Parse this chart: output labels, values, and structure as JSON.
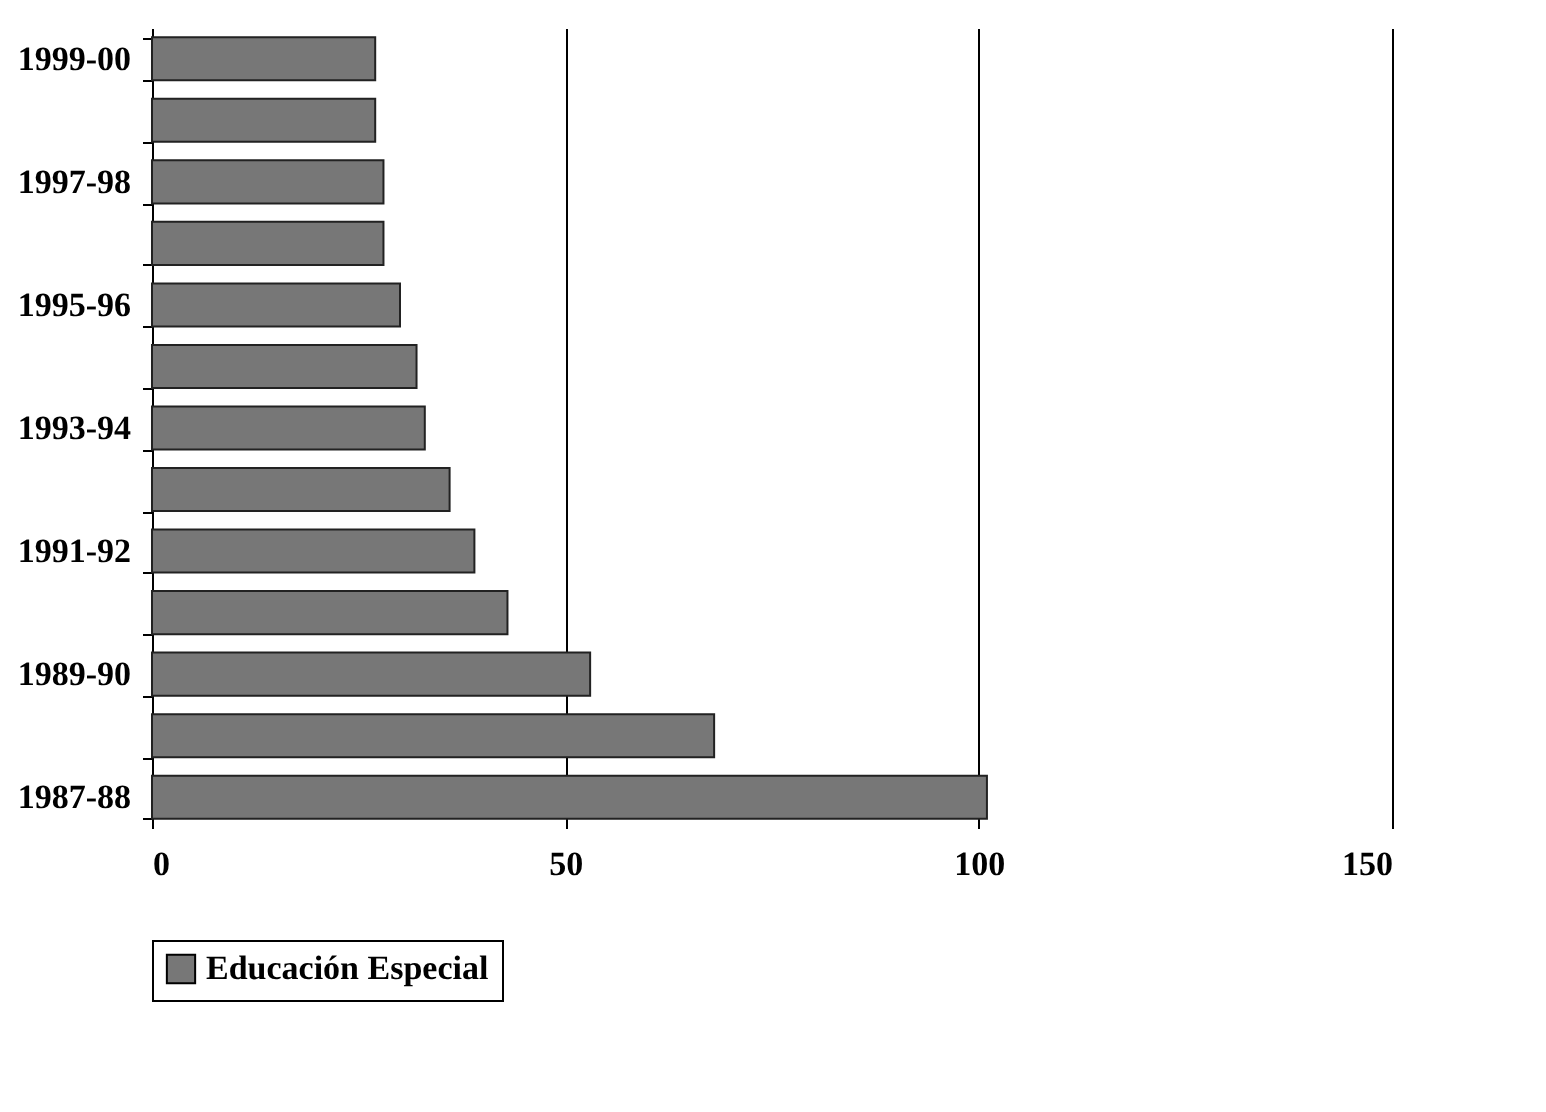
{
  "chart_data": {
    "type": "bar",
    "orientation": "horizontal",
    "categories": [
      "1999-00",
      null,
      "1997-98",
      null,
      "1995-96",
      null,
      "1993-94",
      null,
      "1991-92",
      null,
      "1989-90",
      null,
      "1987-88"
    ],
    "series": [
      {
        "name": "Educación Especial",
        "color": "#777777",
        "values": [
          27,
          27,
          28,
          28,
          30,
          32,
          33,
          36,
          39,
          43,
          53,
          68,
          101
        ]
      }
    ],
    "xlim": [
      0,
      150
    ],
    "xticks": [
      0,
      50,
      100,
      150
    ],
    "grid": "x",
    "legend": "bottom"
  }
}
